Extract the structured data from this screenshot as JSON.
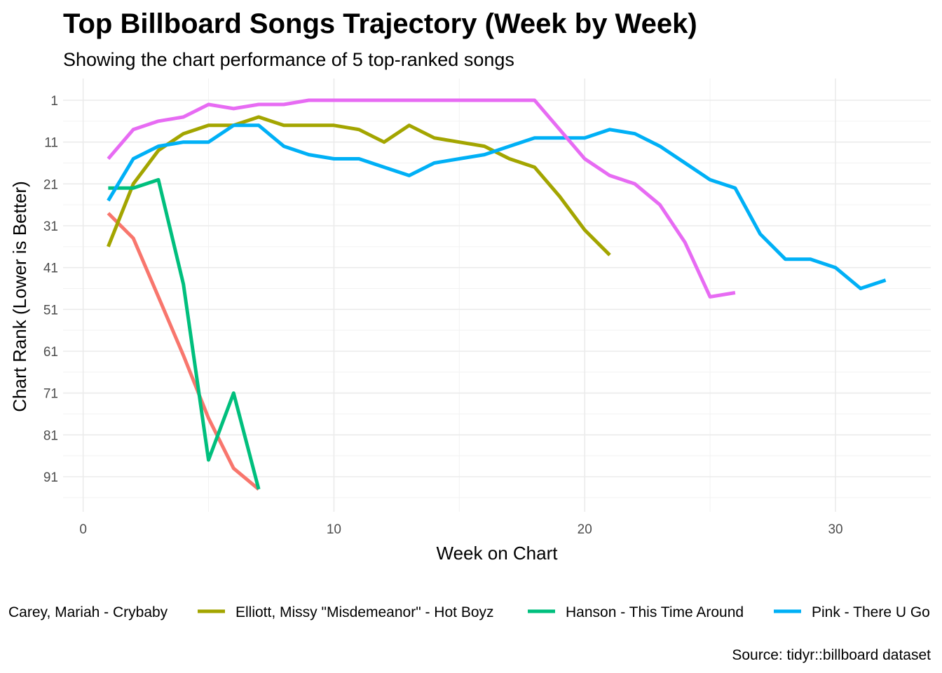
{
  "chart_data": {
    "type": "line",
    "title": "Top Billboard Songs Trajectory (Week by Week)",
    "subtitle": "Showing the chart performance of 5 top-ranked songs",
    "xlabel": "Week on Chart",
    "ylabel": "Chart Rank (Lower is Better)",
    "caption": "Source: tidyr::billboard dataset",
    "xlim": [
      -0.8,
      33.8
    ],
    "ylim": [
      1,
      95
    ],
    "y_reversed": true,
    "x_ticks": [
      0,
      10,
      20,
      30
    ],
    "x_tick_labels": [
      "0",
      "10",
      "20",
      "30"
    ],
    "y_ticks": [
      1,
      11,
      21,
      31,
      41,
      51,
      61,
      71,
      81,
      91
    ],
    "y_tick_labels": [
      "1",
      "11",
      "21",
      "31",
      "41",
      "51",
      "61",
      "71",
      "81",
      "91"
    ],
    "grid": true,
    "legend_position": "bottom",
    "series": [
      {
        "name": "Carey, Mariah - Crybaby",
        "color": "#F8766D",
        "x": [
          1,
          2,
          3,
          4,
          5,
          6,
          7
        ],
        "y": [
          28,
          34,
          48,
          62,
          77,
          89,
          94
        ]
      },
      {
        "name": "Elliott, Missy \"Misdemeanor\" - Hot Boyz",
        "color": "#A3A500",
        "x": [
          1,
          2,
          3,
          4,
          5,
          6,
          7,
          8,
          9,
          10,
          11,
          12,
          13,
          14,
          15,
          16,
          17,
          18,
          19,
          20,
          21
        ],
        "y": [
          36,
          21,
          13,
          9,
          7,
          7,
          5,
          7,
          7,
          7,
          8,
          11,
          7,
          10,
          11,
          12,
          15,
          17,
          24,
          32,
          38
        ]
      },
      {
        "name": "Hanson - This Time Around",
        "color": "#00BF7D",
        "x": [
          1,
          2,
          3,
          4,
          5,
          6,
          7
        ],
        "y": [
          22,
          22,
          20,
          45,
          87,
          71,
          94
        ]
      },
      {
        "name": "Pink - There U Go",
        "color": "#00B0F6",
        "x": [
          1,
          2,
          3,
          4,
          5,
          6,
          7,
          8,
          9,
          10,
          11,
          12,
          13,
          14,
          15,
          16,
          17,
          18,
          19,
          20,
          21,
          22,
          23,
          24,
          25,
          26,
          27,
          28,
          29,
          30,
          31,
          32
        ],
        "y": [
          25,
          15,
          12,
          11,
          11,
          7,
          7,
          12,
          14,
          15,
          15,
          17,
          19,
          16,
          15,
          14,
          12,
          10,
          10,
          10,
          8,
          9,
          12,
          16,
          20,
          22,
          33,
          39,
          39,
          41,
          46,
          44
        ]
      },
      {
        "name": "",
        "color": "#E76BF3",
        "x": [
          1,
          2,
          3,
          4,
          5,
          6,
          7,
          8,
          9,
          10,
          11,
          12,
          13,
          14,
          15,
          16,
          17,
          18,
          19,
          20,
          21,
          22,
          23,
          24,
          25,
          26
        ],
        "y": [
          15,
          8,
          6,
          5,
          2,
          3,
          2,
          2,
          1,
          1,
          1,
          1,
          1,
          1,
          1,
          1,
          1,
          1,
          8,
          15,
          19,
          21,
          26,
          35,
          48,
          47
        ]
      }
    ]
  }
}
